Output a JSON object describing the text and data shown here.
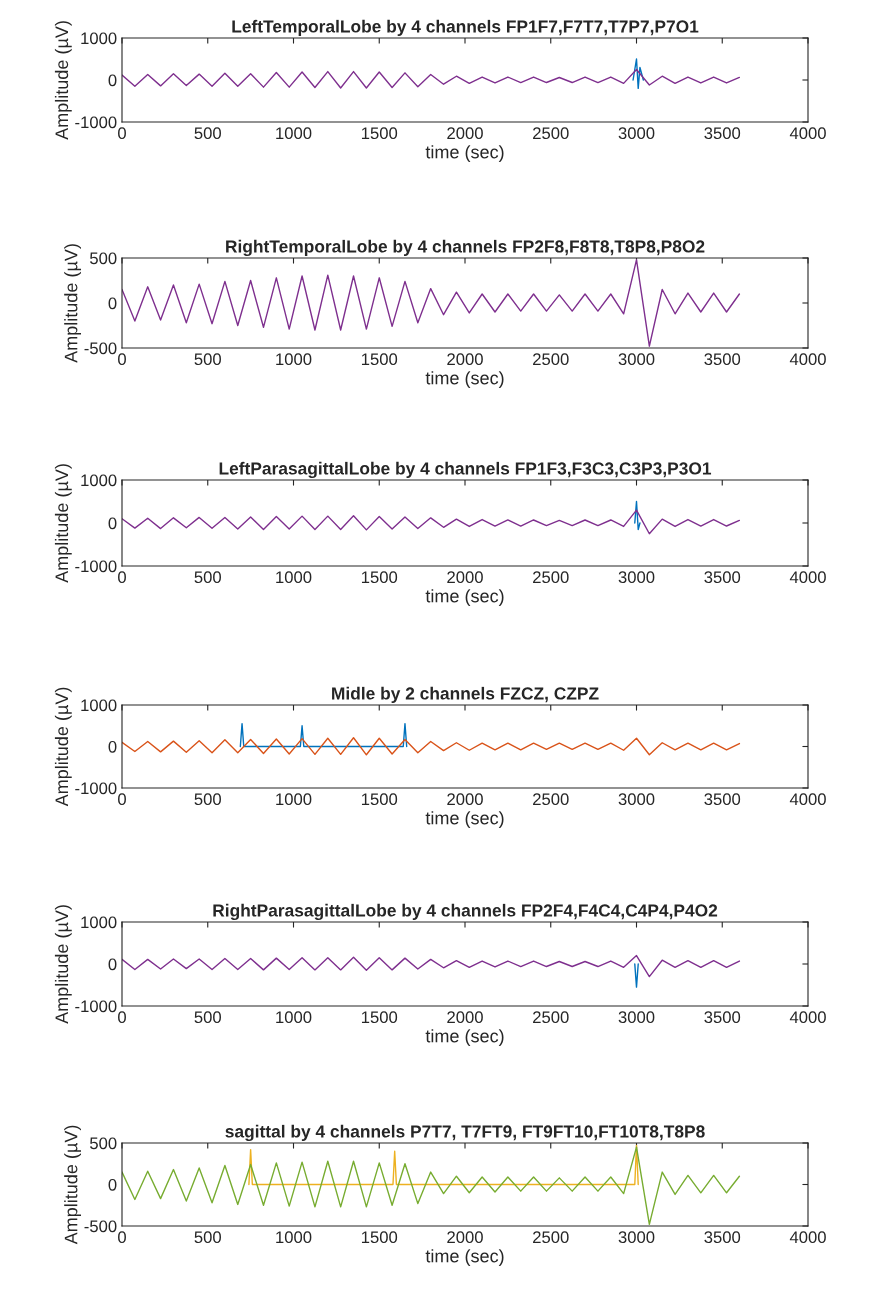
{
  "chart_data": [
    {
      "type": "line",
      "title": "LeftTemporalLobe by 4 channels FP1F7,F7T7,T7P7,P7O1",
      "xlabel": "time (sec)",
      "ylabel": "Amplitude (µV)",
      "xlim": [
        0,
        4000
      ],
      "ylim": [
        -1000,
        1000
      ],
      "xticks": [
        0,
        500,
        1000,
        1500,
        2000,
        2500,
        3000,
        3500,
        4000
      ],
      "yticks": [
        -1000,
        0,
        1000
      ],
      "x": [
        0,
        75,
        150,
        225,
        300,
        375,
        450,
        525,
        600,
        675,
        750,
        825,
        900,
        975,
        1050,
        1125,
        1200,
        1275,
        1350,
        1425,
        1500,
        1575,
        1650,
        1725,
        1800,
        1875,
        1950,
        2025,
        2100,
        2175,
        2250,
        2325,
        2400,
        2475,
        2550,
        2625,
        2700,
        2775,
        2850,
        2925,
        3000,
        3075,
        3150,
        3225,
        3300,
        3375,
        3450,
        3525,
        3600
      ],
      "series": [
        {
          "color": "#0072bd",
          "x": [
            2980,
            3000,
            3010,
            3020,
            3040
          ],
          "values": [
            0,
            500,
            -200,
            300,
            0
          ]
        },
        {
          "color": "#7e2f8e",
          "values": [
            120,
            -150,
            130,
            -140,
            150,
            -130,
            140,
            -150,
            160,
            -150,
            150,
            -170,
            180,
            -170,
            190,
            -180,
            200,
            -190,
            200,
            -190,
            190,
            -180,
            170,
            -160,
            130,
            -100,
            90,
            -80,
            70,
            -70,
            70,
            -60,
            70,
            -60,
            60,
            -60,
            70,
            -60,
            70,
            -80,
            250,
            -120,
            90,
            -80,
            70,
            -70,
            70,
            -70,
            60
          ]
        }
      ]
    },
    {
      "type": "line",
      "title": "RightTemporalLobe by 4 channels FP2F8,F8T8,T8P8,P8O2",
      "xlabel": "time (sec)",
      "ylabel": "Amplitude (µV)",
      "xlim": [
        0,
        4000
      ],
      "ylim": [
        -500,
        500
      ],
      "xticks": [
        0,
        500,
        1000,
        1500,
        2000,
        2500,
        3000,
        3500,
        4000
      ],
      "yticks": [
        -500,
        0,
        500
      ],
      "x": [
        0,
        75,
        150,
        225,
        300,
        375,
        450,
        525,
        600,
        675,
        750,
        825,
        900,
        975,
        1050,
        1125,
        1200,
        1275,
        1350,
        1425,
        1500,
        1575,
        1650,
        1725,
        1800,
        1875,
        1950,
        2025,
        2100,
        2175,
        2250,
        2325,
        2400,
        2475,
        2550,
        2625,
        2700,
        2775,
        2850,
        2925,
        3000,
        3075,
        3150,
        3225,
        3300,
        3375,
        3450,
        3525,
        3600
      ],
      "series": [
        {
          "color": "#7e2f8e",
          "values": [
            150,
            -200,
            180,
            -190,
            200,
            -220,
            210,
            -230,
            240,
            -250,
            250,
            -270,
            280,
            -290,
            300,
            -300,
            310,
            -300,
            300,
            -290,
            280,
            -260,
            240,
            -220,
            160,
            -130,
            120,
            -110,
            100,
            -100,
            100,
            -90,
            100,
            -90,
            90,
            -90,
            100,
            -90,
            100,
            -120,
            480,
            -480,
            150,
            -120,
            110,
            -100,
            110,
            -100,
            100
          ]
        }
      ]
    },
    {
      "type": "line",
      "title": "LeftParasagittalLobe by 4 channels FP1F3,F3C3,C3P3,P3O1",
      "xlabel": "time (sec)",
      "ylabel": "Amplitude (µV)",
      "xlim": [
        0,
        4000
      ],
      "ylim": [
        -1000,
        1000
      ],
      "xticks": [
        0,
        500,
        1000,
        1500,
        2000,
        2500,
        3000,
        3500,
        4000
      ],
      "yticks": [
        -1000,
        0,
        1000
      ],
      "x": [
        0,
        75,
        150,
        225,
        300,
        375,
        450,
        525,
        600,
        675,
        750,
        825,
        900,
        975,
        1050,
        1125,
        1200,
        1275,
        1350,
        1425,
        1500,
        1575,
        1650,
        1725,
        1800,
        1875,
        1950,
        2025,
        2100,
        2175,
        2250,
        2325,
        2400,
        2475,
        2550,
        2625,
        2700,
        2775,
        2850,
        2925,
        3000,
        3075,
        3150,
        3225,
        3300,
        3375,
        3450,
        3525,
        3600
      ],
      "series": [
        {
          "color": "#0072bd",
          "x": [
            2990,
            3000,
            3010,
            3020
          ],
          "values": [
            0,
            500,
            -150,
            0
          ]
        },
        {
          "color": "#7e2f8e",
          "values": [
            100,
            -120,
            110,
            -130,
            120,
            -110,
            130,
            -120,
            130,
            -140,
            140,
            -150,
            150,
            -140,
            160,
            -150,
            160,
            -150,
            170,
            -160,
            150,
            -140,
            140,
            -130,
            120,
            -100,
            90,
            -80,
            80,
            -70,
            70,
            -70,
            70,
            -60,
            60,
            -60,
            70,
            -60,
            70,
            -80,
            300,
            -250,
            90,
            -80,
            80,
            -70,
            80,
            -70,
            60
          ]
        }
      ]
    },
    {
      "type": "line",
      "title": "Midle by 2 channels FZCZ, CZPZ",
      "xlabel": "time (sec)",
      "ylabel": "Amplitude (µV)",
      "xlim": [
        0,
        4000
      ],
      "ylim": [
        -1000,
        1000
      ],
      "xticks": [
        0,
        500,
        1000,
        1500,
        2000,
        2500,
        3000,
        3500,
        4000
      ],
      "yticks": [
        -1000,
        0,
        1000
      ],
      "x": [
        0,
        75,
        150,
        225,
        300,
        375,
        450,
        525,
        600,
        675,
        750,
        825,
        900,
        975,
        1050,
        1125,
        1200,
        1275,
        1350,
        1425,
        1500,
        1575,
        1650,
        1725,
        1800,
        1875,
        1950,
        2025,
        2100,
        2175,
        2250,
        2325,
        2400,
        2475,
        2550,
        2625,
        2700,
        2775,
        2850,
        2925,
        3000,
        3075,
        3150,
        3225,
        3300,
        3375,
        3450,
        3525,
        3600
      ],
      "series": [
        {
          "color": "#0072bd",
          "x": [
            690,
            700,
            710,
            1040,
            1050,
            1060,
            1640,
            1650,
            1660
          ],
          "values": [
            0,
            550,
            0,
            0,
            500,
            0,
            0,
            550,
            0
          ]
        },
        {
          "color": "#d95319",
          "values": [
            100,
            -120,
            120,
            -130,
            130,
            -140,
            140,
            -150,
            160,
            -150,
            170,
            -170,
            180,
            -180,
            190,
            -190,
            200,
            -190,
            210,
            -200,
            200,
            -180,
            170,
            -150,
            120,
            -100,
            90,
            -90,
            80,
            -80,
            80,
            -80,
            80,
            -70,
            80,
            -70,
            80,
            -70,
            80,
            -90,
            200,
            -200,
            90,
            -80,
            80,
            -80,
            80,
            -80,
            70
          ]
        }
      ]
    },
    {
      "type": "line",
      "title": "RightParasagittalLobe by 4 channels FP2F4,F4C4,C4P4,P4O2",
      "xlabel": "time (sec)",
      "ylabel": "Amplitude (µV)",
      "xlim": [
        0,
        4000
      ],
      "ylim": [
        -1000,
        1000
      ],
      "xticks": [
        0,
        500,
        1000,
        1500,
        2000,
        2500,
        3000,
        3500,
        4000
      ],
      "yticks": [
        -1000,
        0,
        1000
      ],
      "x": [
        0,
        75,
        150,
        225,
        300,
        375,
        450,
        525,
        600,
        675,
        750,
        825,
        900,
        975,
        1050,
        1125,
        1200,
        1275,
        1350,
        1425,
        1500,
        1575,
        1650,
        1725,
        1800,
        1875,
        1950,
        2025,
        2100,
        2175,
        2250,
        2325,
        2400,
        2475,
        2550,
        2625,
        2700,
        2775,
        2850,
        2925,
        3000,
        3075,
        3150,
        3225,
        3300,
        3375,
        3450,
        3525,
        3600
      ],
      "series": [
        {
          "color": "#0072bd",
          "x": [
            2990,
            3000,
            3010
          ],
          "values": [
            0,
            -550,
            0
          ]
        },
        {
          "color": "#7e2f8e",
          "values": [
            110,
            -130,
            110,
            -120,
            120,
            -110,
            120,
            -130,
            130,
            -130,
            130,
            -140,
            140,
            -130,
            150,
            -140,
            150,
            -140,
            160,
            -150,
            150,
            -140,
            140,
            -120,
            110,
            -90,
            80,
            -80,
            70,
            -70,
            70,
            -60,
            70,
            -60,
            60,
            -60,
            60,
            -60,
            70,
            -80,
            200,
            -300,
            90,
            -80,
            80,
            -80,
            80,
            -80,
            70
          ]
        }
      ]
    },
    {
      "type": "line",
      "title": "sagittal by 4 channels P7T7, T7FT9, FT9FT10,FT10T8,T8P8",
      "xlabel": "time (sec)",
      "ylabel": "Amplitude (µV)",
      "xlim": [
        0,
        4000
      ],
      "ylim": [
        -500,
        500
      ],
      "xticks": [
        0,
        500,
        1000,
        1500,
        2000,
        2500,
        3000,
        3500,
        4000
      ],
      "yticks": [
        -500,
        0,
        500
      ],
      "x": [
        0,
        75,
        150,
        225,
        300,
        375,
        450,
        525,
        600,
        675,
        750,
        825,
        900,
        975,
        1050,
        1125,
        1200,
        1275,
        1350,
        1425,
        1500,
        1575,
        1650,
        1725,
        1800,
        1875,
        1950,
        2025,
        2100,
        2175,
        2250,
        2325,
        2400,
        2475,
        2550,
        2625,
        2700,
        2775,
        2850,
        2925,
        3000,
        3075,
        3150,
        3225,
        3300,
        3375,
        3450,
        3525,
        3600
      ],
      "series": [
        {
          "color": "#edb120",
          "x": [
            740,
            750,
            760,
            1580,
            1590,
            1600,
            2990,
            3000,
            3010
          ],
          "values": [
            0,
            420,
            0,
            0,
            400,
            0,
            0,
            470,
            0
          ]
        },
        {
          "color": "#77ac30",
          "values": [
            150,
            -180,
            160,
            -170,
            180,
            -200,
            200,
            -220,
            230,
            -240,
            240,
            -250,
            260,
            -260,
            270,
            -270,
            280,
            -270,
            280,
            -270,
            260,
            -250,
            250,
            -230,
            150,
            -110,
            100,
            -100,
            90,
            -90,
            90,
            -80,
            90,
            -80,
            80,
            -80,
            90,
            -80,
            90,
            -110,
            450,
            -480,
            150,
            -120,
            110,
            -100,
            110,
            -100,
            100
          ]
        }
      ]
    }
  ]
}
